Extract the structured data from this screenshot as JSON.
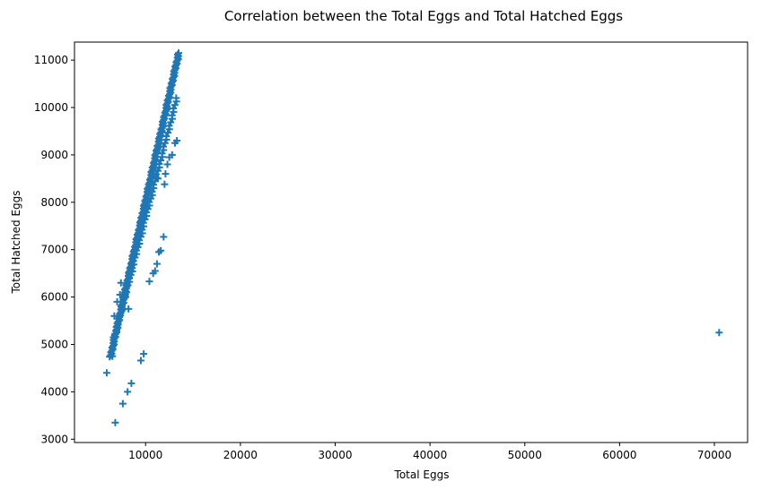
{
  "chart_data": {
    "type": "scatter",
    "title": "Correlation between the Total Eggs and Total Hatched Eggs",
    "xlabel": "Total Eggs",
    "ylabel": "Total Hatched Eggs",
    "xlim": [
      2500,
      73500
    ],
    "ylim": [
      2930,
      11380
    ],
    "xticks": [
      10000,
      20000,
      30000,
      40000,
      50000,
      60000,
      70000
    ],
    "yticks": [
      3000,
      4000,
      5000,
      6000,
      7000,
      8000,
      9000,
      10000,
      11000
    ],
    "marker": "+",
    "grid": false,
    "color": "#1f77b4",
    "main_band": {
      "x_start": 6300,
      "y_start": 4740,
      "x_end": 13500,
      "y_end": 11150,
      "count": 200
    },
    "secondary_band": {
      "x_start": 6700,
      "y_start": 5150,
      "x_end": 13300,
      "y_end": 10200,
      "count": 70
    },
    "points": [
      [
        5900,
        4400
      ],
      [
        6800,
        3350
      ],
      [
        7600,
        3750
      ],
      [
        8100,
        4000
      ],
      [
        8500,
        4180
      ],
      [
        9500,
        4660
      ],
      [
        9800,
        4800
      ],
      [
        6500,
        4750
      ],
      [
        6700,
        5600
      ],
      [
        7000,
        5900
      ],
      [
        7300,
        6050
      ],
      [
        7400,
        6300
      ],
      [
        7900,
        6000
      ],
      [
        8200,
        5750
      ],
      [
        10400,
        6330
      ],
      [
        10800,
        6500
      ],
      [
        11000,
        6550
      ],
      [
        11200,
        6700
      ],
      [
        11400,
        6950
      ],
      [
        11600,
        6980
      ],
      [
        11900,
        7270
      ],
      [
        12000,
        8380
      ],
      [
        12100,
        8600
      ],
      [
        12300,
        8800
      ],
      [
        12500,
        8950
      ],
      [
        12800,
        9000
      ],
      [
        13100,
        9250
      ],
      [
        13300,
        9300
      ],
      [
        10600,
        8500
      ],
      [
        10900,
        8600
      ],
      [
        11100,
        8520
      ],
      [
        11300,
        8500
      ],
      [
        70500,
        5250
      ]
    ]
  }
}
